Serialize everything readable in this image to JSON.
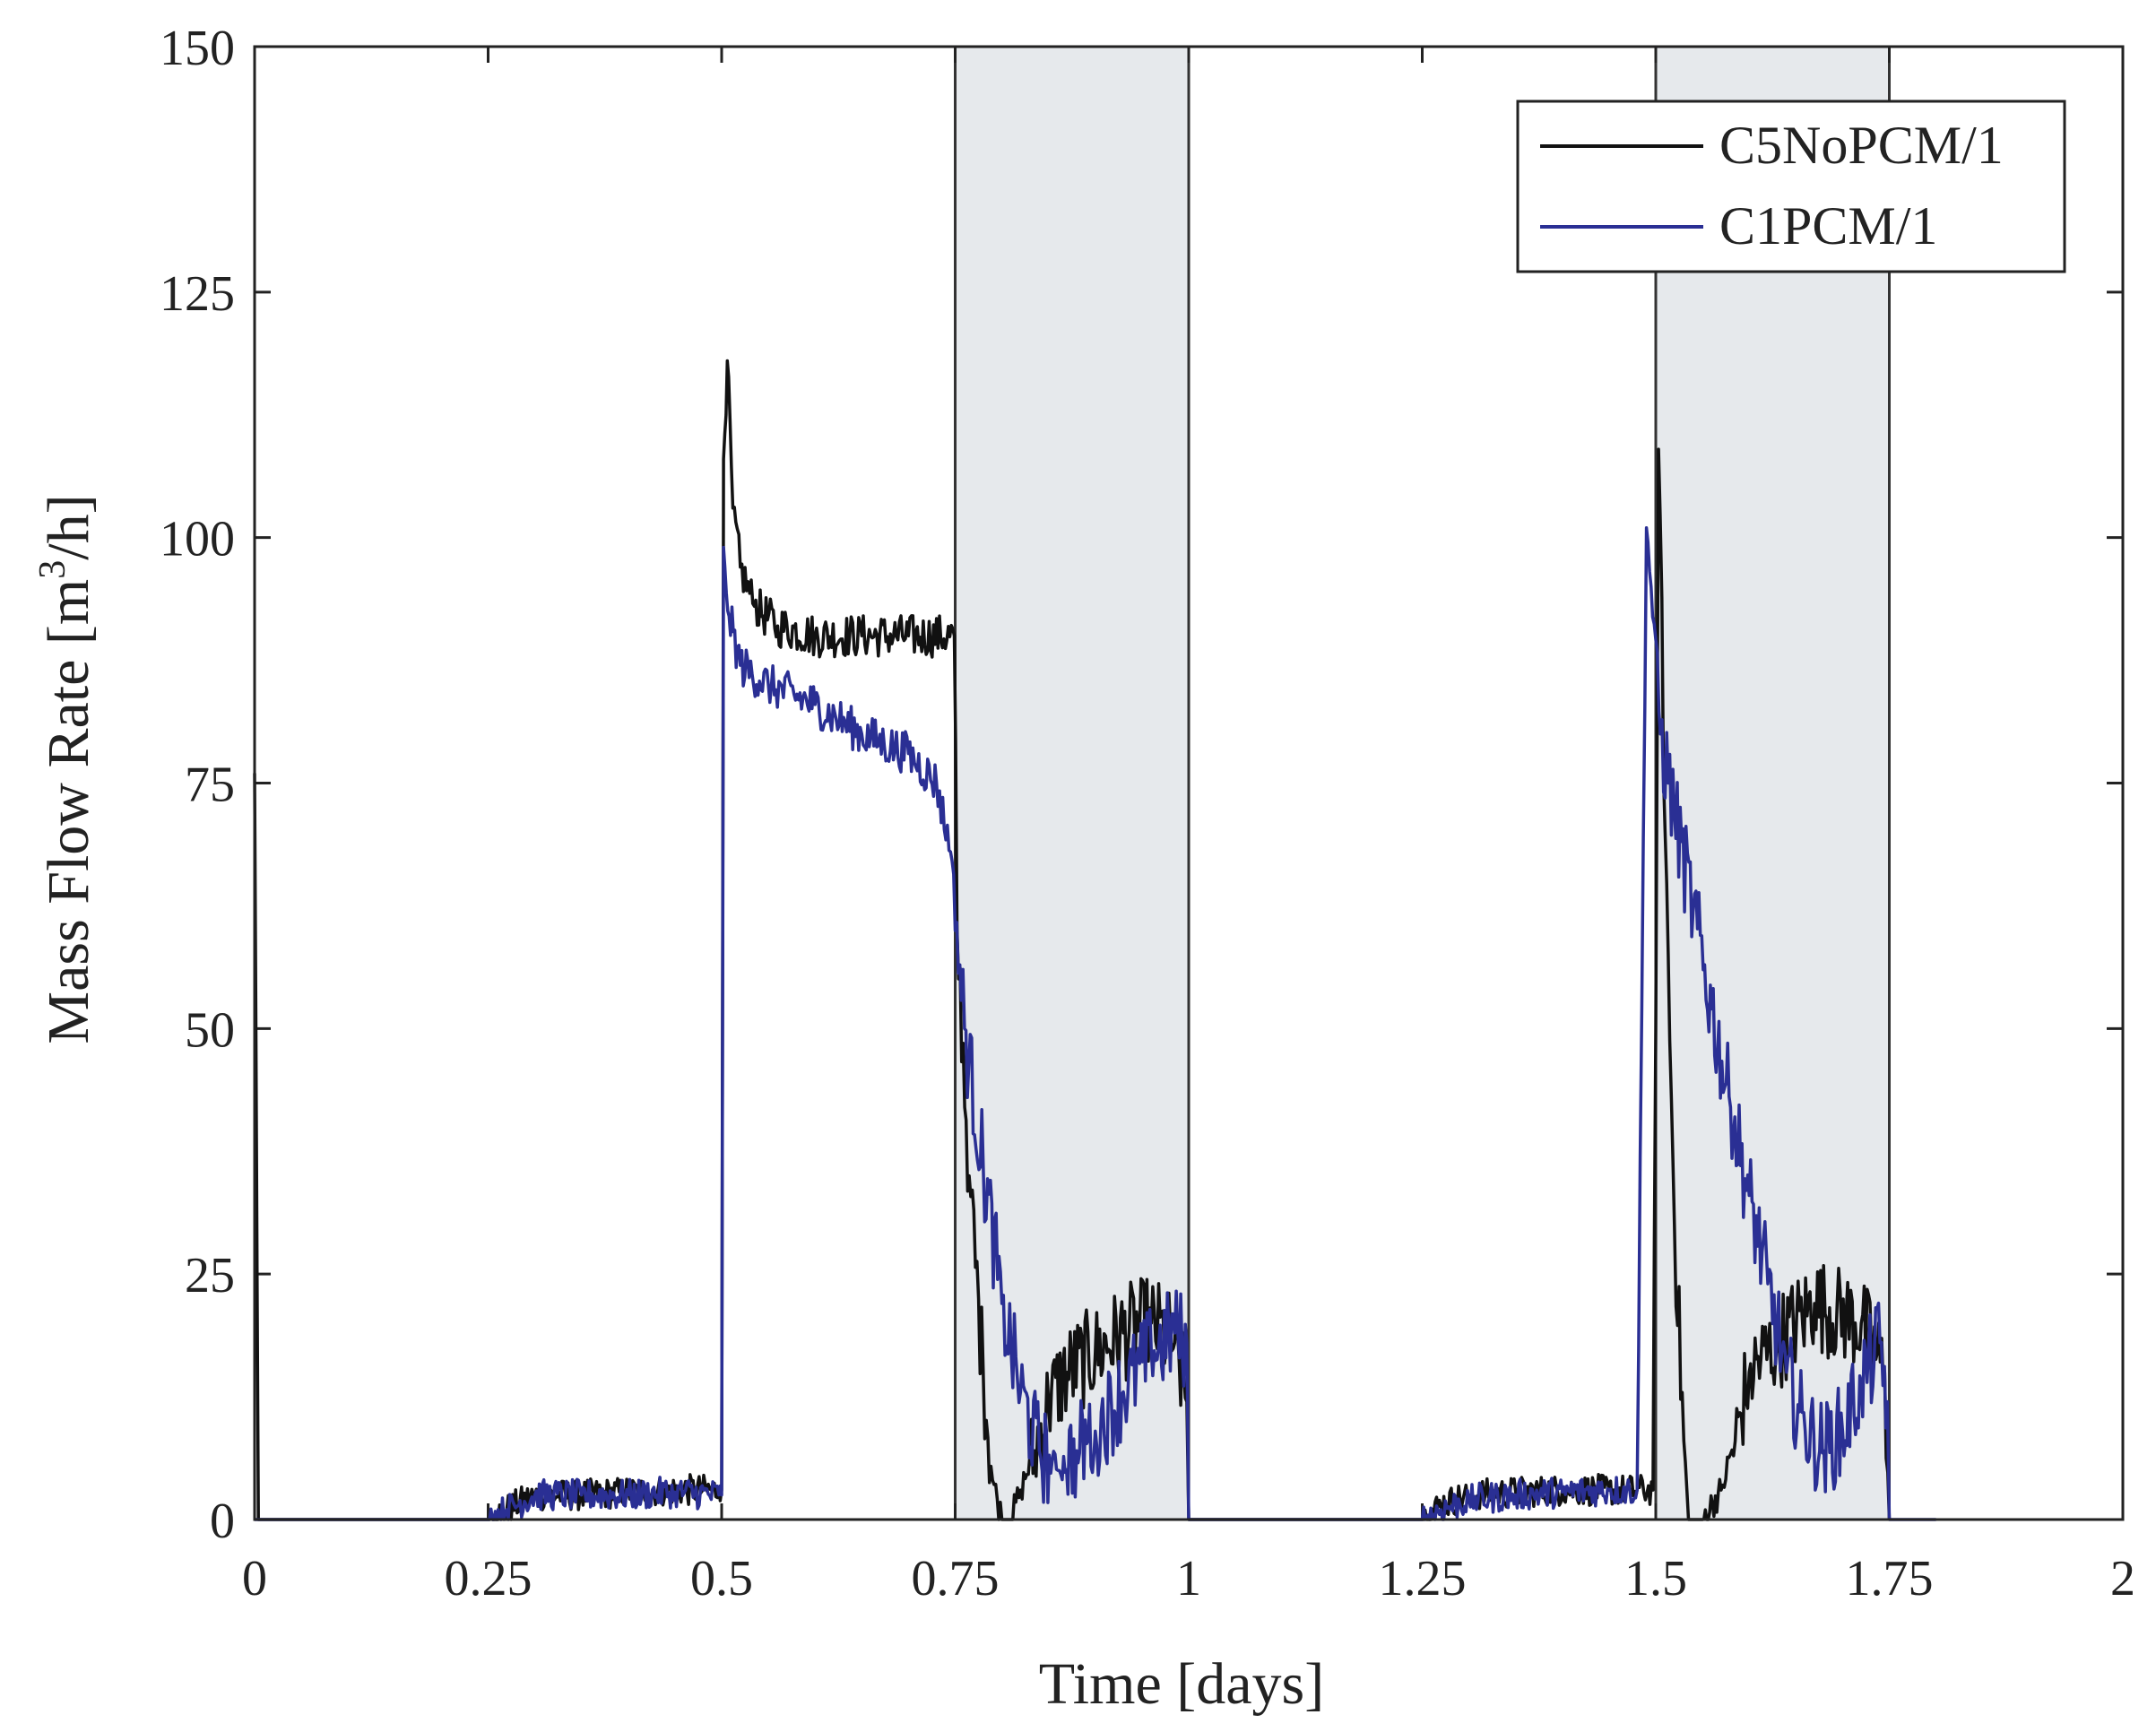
{
  "chart_data": {
    "type": "line",
    "title": "",
    "xlabel": "Time [days]",
    "ylabel_prefix": "Mass Flow Rate [m",
    "ylabel_sup": "3",
    "ylabel_suffix": "/h]",
    "xlim": [
      0,
      2
    ],
    "ylim": [
      0,
      150
    ],
    "xticks": [
      0,
      0.25,
      0.5,
      0.75,
      1,
      1.25,
      1.5,
      1.75,
      2
    ],
    "xtick_labels": [
      "0",
      "0.25",
      "0.5",
      "0.75",
      "1",
      "1.25",
      "1.5",
      "1.75",
      "2"
    ],
    "yticks": [
      0,
      25,
      50,
      75,
      100,
      125,
      150
    ],
    "ytick_labels": [
      "0",
      "25",
      "50",
      "75",
      "100",
      "125",
      "150"
    ],
    "shaded_regions": [
      [
        0.75,
        1.0
      ],
      [
        1.5,
        1.75
      ]
    ],
    "shade_color": "#e6e9ec",
    "legend_position": "top-right",
    "series": [
      {
        "name": "C5NoPCM/1",
        "color": "#111111",
        "points": [
          [
            0,
            76
          ],
          [
            0.004,
            0
          ],
          [
            0.25,
            0
          ],
          [
            0.27,
            1
          ],
          [
            0.3,
            2.5
          ],
          [
            0.35,
            2.5
          ],
          [
            0.4,
            2.8
          ],
          [
            0.45,
            3
          ],
          [
            0.497,
            3
          ],
          [
            0.5,
            3
          ],
          [
            0.502,
            108
          ],
          [
            0.506,
            118
          ],
          [
            0.512,
            103
          ],
          [
            0.52,
            97
          ],
          [
            0.535,
            93
          ],
          [
            0.56,
            91
          ],
          [
            0.6,
            90
          ],
          [
            0.65,
            90
          ],
          [
            0.7,
            90
          ],
          [
            0.749,
            90
          ],
          [
            0.752,
            60
          ],
          [
            0.765,
            35
          ],
          [
            0.78,
            15
          ],
          [
            0.79,
            4
          ],
          [
            0.8,
            0
          ],
          [
            0.81,
            0
          ],
          [
            0.82,
            3
          ],
          [
            0.835,
            7
          ],
          [
            0.85,
            12
          ],
          [
            0.87,
            15
          ],
          [
            0.9,
            17
          ],
          [
            0.93,
            19
          ],
          [
            0.96,
            20
          ],
          [
            0.985,
            18
          ],
          [
            0.998,
            12
          ],
          [
            1.0,
            0
          ],
          [
            1.25,
            0
          ],
          [
            1.27,
            1.5
          ],
          [
            1.3,
            2.5
          ],
          [
            1.35,
            2.8
          ],
          [
            1.4,
            3
          ],
          [
            1.45,
            3
          ],
          [
            1.497,
            3
          ],
          [
            1.5,
            50
          ],
          [
            1.503,
            109
          ],
          [
            1.51,
            70
          ],
          [
            1.52,
            30
          ],
          [
            1.53,
            8
          ],
          [
            1.535,
            0
          ],
          [
            1.55,
            0
          ],
          [
            1.57,
            3
          ],
          [
            1.585,
            8
          ],
          [
            1.6,
            15
          ],
          [
            1.63,
            18
          ],
          [
            1.67,
            22
          ],
          [
            1.72,
            20
          ],
          [
            1.745,
            15
          ],
          [
            1.75,
            0
          ]
        ]
      },
      {
        "name": "C1PCM/1",
        "color": "#2a2f94",
        "points": [
          [
            0,
            0
          ],
          [
            0.25,
            0
          ],
          [
            0.27,
            1
          ],
          [
            0.3,
            2.5
          ],
          [
            0.35,
            2.5
          ],
          [
            0.4,
            2.5
          ],
          [
            0.45,
            2.8
          ],
          [
            0.497,
            2.5
          ],
          [
            0.5,
            2.5
          ],
          [
            0.502,
            99
          ],
          [
            0.508,
            92
          ],
          [
            0.52,
            87
          ],
          [
            0.55,
            85
          ],
          [
            0.6,
            83
          ],
          [
            0.65,
            80
          ],
          [
            0.7,
            78
          ],
          [
            0.73,
            75
          ],
          [
            0.745,
            68
          ],
          [
            0.76,
            50
          ],
          [
            0.78,
            36
          ],
          [
            0.8,
            22
          ],
          [
            0.82,
            13
          ],
          [
            0.84,
            7
          ],
          [
            0.86,
            5
          ],
          [
            0.88,
            7
          ],
          [
            0.9,
            9
          ],
          [
            0.93,
            13
          ],
          [
            0.96,
            17
          ],
          [
            0.985,
            19
          ],
          [
            0.998,
            18
          ],
          [
            1.0,
            0
          ],
          [
            1.25,
            0
          ],
          [
            1.27,
            1
          ],
          [
            1.3,
            2
          ],
          [
            1.35,
            2.5
          ],
          [
            1.4,
            2.8
          ],
          [
            1.45,
            3
          ],
          [
            1.48,
            3
          ],
          [
            1.49,
            101
          ],
          [
            1.495,
            95
          ],
          [
            1.505,
            80
          ],
          [
            1.52,
            72
          ],
          [
            1.54,
            62
          ],
          [
            1.56,
            52
          ],
          [
            1.58,
            42
          ],
          [
            1.6,
            33
          ],
          [
            1.62,
            24
          ],
          [
            1.64,
            15
          ],
          [
            1.66,
            9
          ],
          [
            1.68,
            7
          ],
          [
            1.7,
            9
          ],
          [
            1.72,
            14
          ],
          [
            1.74,
            18
          ],
          [
            1.748,
            12
          ],
          [
            1.75,
            0
          ],
          [
            1.8,
            0
          ]
        ]
      }
    ]
  }
}
